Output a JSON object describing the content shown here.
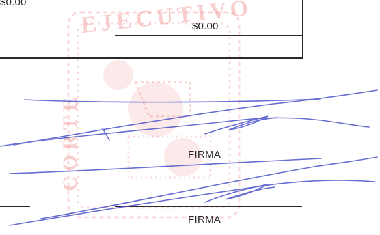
{
  "form": {
    "top_amount": "$0.00",
    "box_amount": "$0.00"
  },
  "signature_lines": [
    {
      "label": "FIRMA"
    },
    {
      "label": "FIRMA"
    }
  ],
  "stamp": {
    "ink_color": "#e65050",
    "text_top": "EJECUTIVO",
    "text_side": "CORTE"
  },
  "signature_ink_color": "#4c54c8"
}
